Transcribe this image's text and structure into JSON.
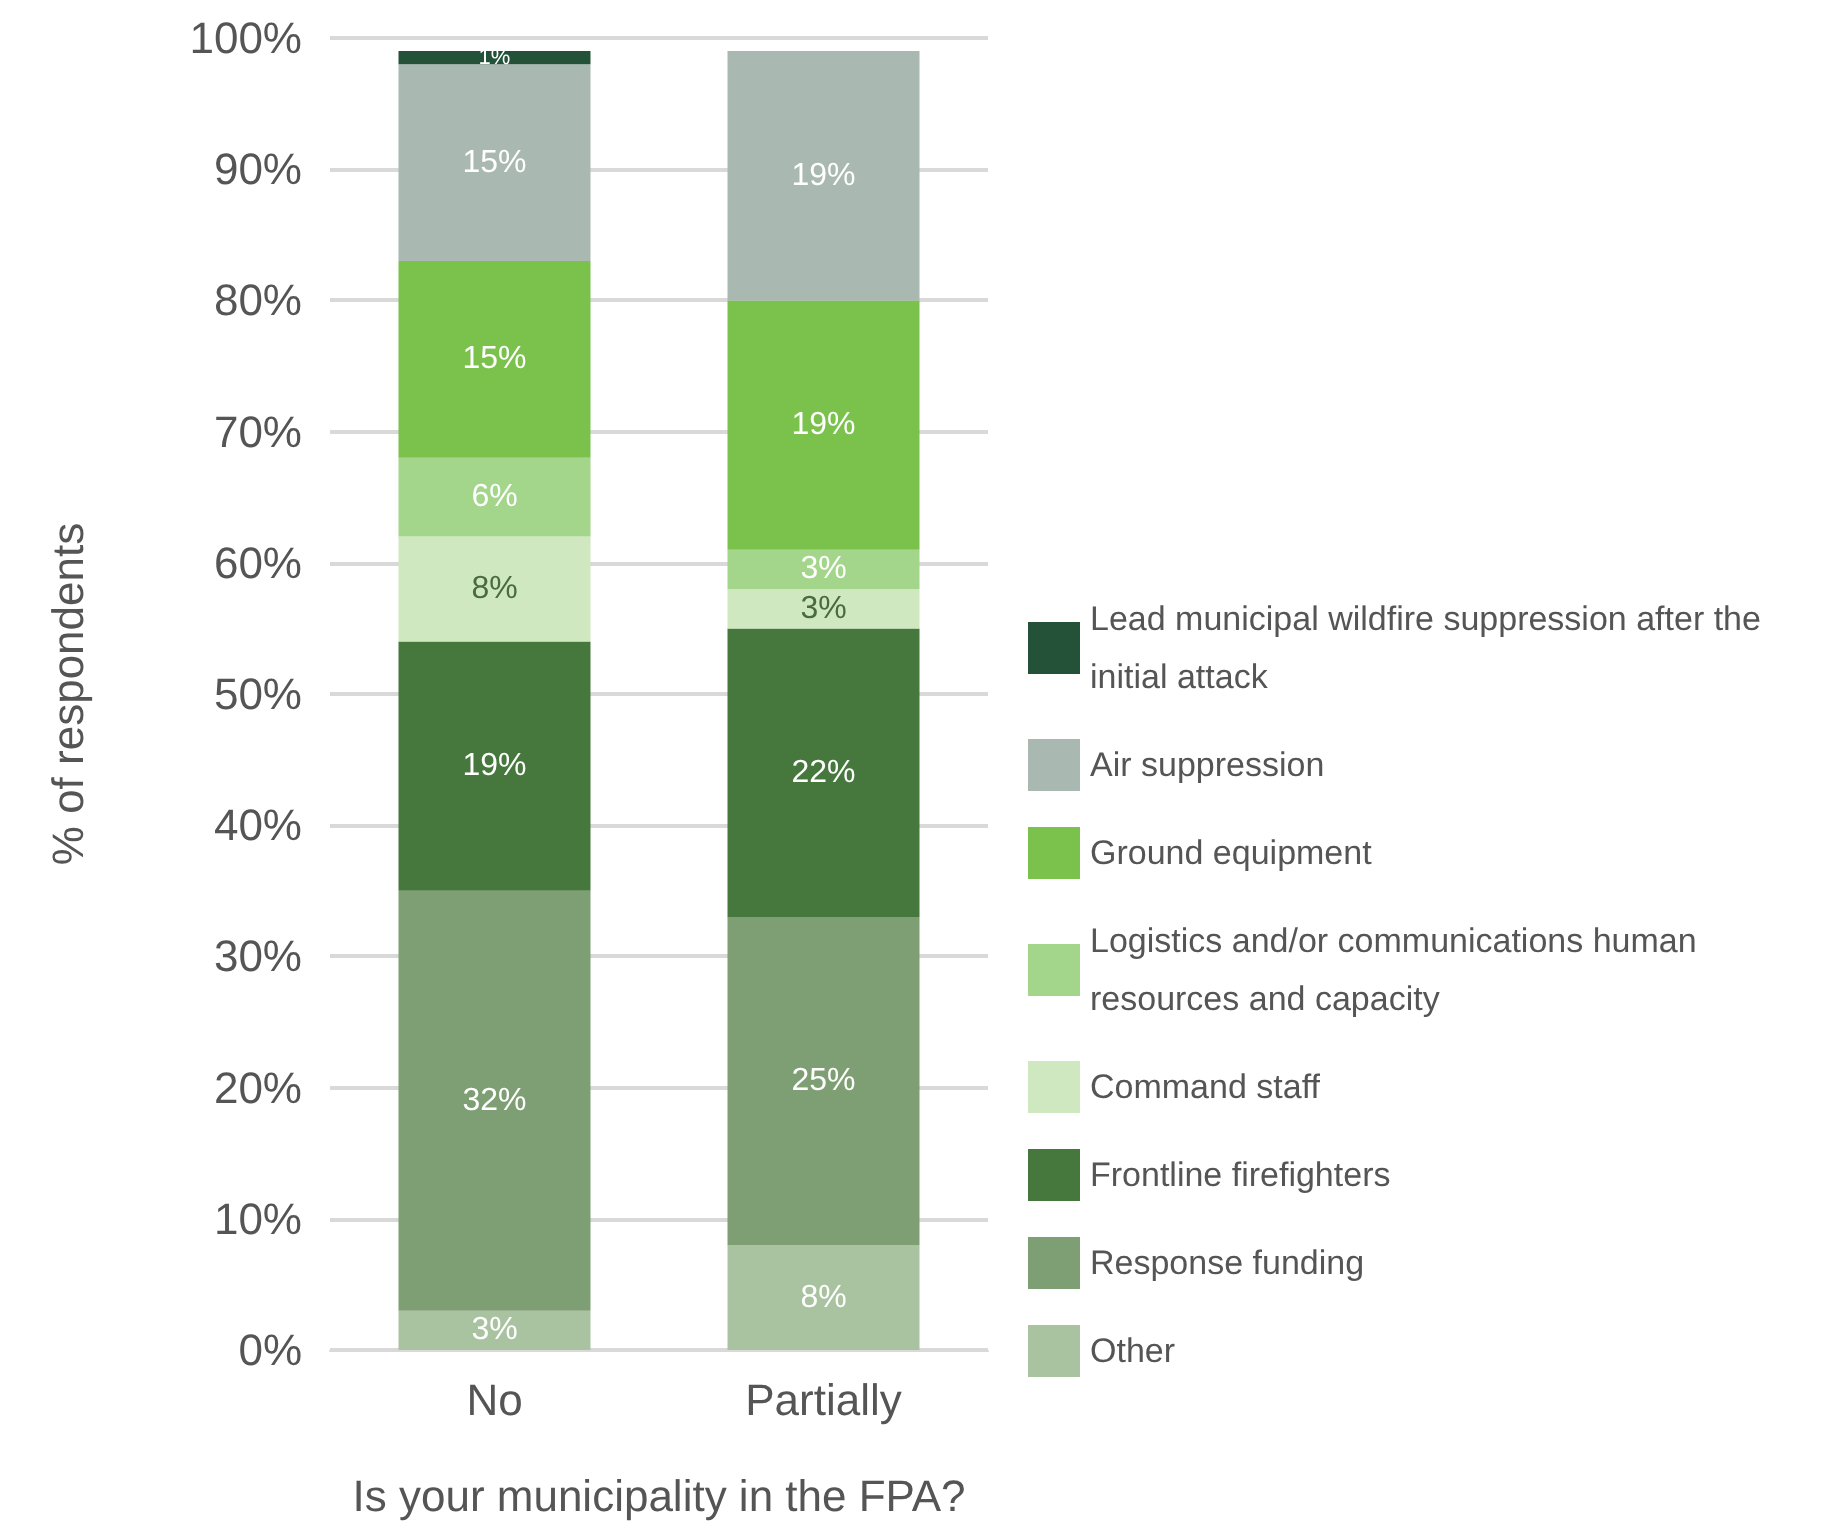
{
  "chart_data": {
    "type": "bar",
    "stacked": true,
    "xlabel": "Is your municipality in the FPA?",
    "ylabel": "% of respondents",
    "categories": [
      "No",
      "Partially"
    ],
    "series": [
      {
        "name": "Other",
        "color": "#a9c3a1",
        "values": [
          3,
          8
        ],
        "value_labels": [
          "3%",
          "8%"
        ]
      },
      {
        "name": "Response funding",
        "color": "#7e9f74",
        "values": [
          32,
          25
        ],
        "value_labels": [
          "32%",
          "25%"
        ]
      },
      {
        "name": "Frontline firefighters",
        "color": "#46783d",
        "values": [
          19,
          22
        ],
        "value_labels": [
          "19%",
          "22%"
        ]
      },
      {
        "name": "Command staff",
        "color": "#cfe8c0",
        "values": [
          8,
          3
        ],
        "value_labels": [
          "8%",
          "3%"
        ]
      },
      {
        "name": "Logistics and/or communications human resources and capacity",
        "color": "#a3d58a",
        "values": [
          6,
          3
        ],
        "value_labels": [
          "6%",
          "3%"
        ]
      },
      {
        "name": "Ground equipment",
        "color": "#7bc24d",
        "values": [
          15,
          19
        ],
        "value_labels": [
          "15%",
          "19%"
        ]
      },
      {
        "name": "Air suppression",
        "color": "#a9b8b1",
        "values": [
          15,
          19
        ],
        "value_labels": [
          "15%",
          "19%"
        ]
      },
      {
        "name": "Lead municipal wildfire suppression after the initial attack",
        "color": "#245239",
        "values": [
          1,
          null
        ],
        "value_labels": [
          "1%",
          null
        ]
      }
    ],
    "ylim": [
      0,
      100
    ],
    "yticks": [
      {
        "value": 0,
        "label": "0%"
      },
      {
        "value": 10,
        "label": "10%"
      },
      {
        "value": 20,
        "label": "20%"
      },
      {
        "value": 30,
        "label": "30%"
      },
      {
        "value": 40,
        "label": "40%"
      },
      {
        "value": 50,
        "label": "50%"
      },
      {
        "value": 60,
        "label": "60%"
      },
      {
        "value": 70,
        "label": "70%"
      },
      {
        "value": 80,
        "label": "80%"
      },
      {
        "value": 90,
        "label": "90%"
      },
      {
        "value": 100,
        "label": "100%"
      }
    ],
    "grid": "y",
    "legend": "right"
  }
}
